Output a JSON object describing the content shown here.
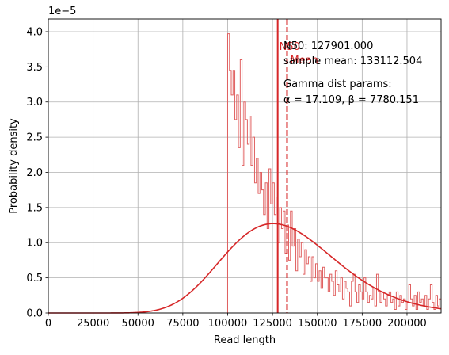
{
  "chart_data": {
    "type": "histogram",
    "title": "",
    "xlabel": "Read length",
    "ylabel": "Probability density",
    "y_offset_label": "1e−5",
    "xlim": [
      0,
      219000
    ],
    "ylim": [
      0,
      4.18e-05
    ],
    "grid": true,
    "x_ticks": [
      {
        "value": 0,
        "label": "0"
      },
      {
        "value": 25000,
        "label": "25000"
      },
      {
        "value": 50000,
        "label": "50000"
      },
      {
        "value": 75000,
        "label": "75000"
      },
      {
        "value": 100000,
        "label": "100000"
      },
      {
        "value": 125000,
        "label": "125000"
      },
      {
        "value": 150000,
        "label": "150000"
      },
      {
        "value": 175000,
        "label": "175000"
      },
      {
        "value": 200000,
        "label": "200000"
      }
    ],
    "y_ticks": [
      {
        "value": 0.0,
        "label": "0.0"
      },
      {
        "value": 5e-06,
        "label": "0.5"
      },
      {
        "value": 1e-05,
        "label": "1.0"
      },
      {
        "value": 1.5e-05,
        "label": "1.5"
      },
      {
        "value": 2e-05,
        "label": "2.0"
      },
      {
        "value": 2.5e-05,
        "label": "2.5"
      },
      {
        "value": 3e-05,
        "label": "3.0"
      },
      {
        "value": 3.5e-05,
        "label": "3.5"
      },
      {
        "value": 4e-05,
        "label": "4.0"
      }
    ],
    "histogram": {
      "bin_start": 100000,
      "bin_width": 1000,
      "densities": [
        3.97e-05,
        3.45e-05,
        3.1e-05,
        3.45e-05,
        2.75e-05,
        3.1e-05,
        2.35e-05,
        3.6e-05,
        2.1e-05,
        3e-05,
        2.75e-05,
        2.4e-05,
        2.8e-05,
        2.1e-05,
        2.5e-05,
        1.85e-05,
        2.2e-05,
        1.7e-05,
        2e-05,
        1.75e-05,
        1.4e-05,
        1.85e-05,
        1.2e-05,
        2.05e-05,
        1.55e-05,
        1.85e-05,
        1.4e-05,
        1.65e-05,
        1e-05,
        1.5e-05,
        1.2e-05,
        1.45e-05,
        8.5e-06,
        1.25e-05,
        7.5e-06,
        1.45e-05,
        9.5e-06,
        1.2e-05,
        6e-06,
        1.05e-05,
        8e-06,
        1e-05,
        5.5e-06,
        9e-06,
        7e-06,
        8e-06,
        4.5e-06,
        8e-06,
        5e-06,
        7e-06,
        4.5e-06,
        6e-06,
        3.5e-06,
        6.5e-06,
        5e-06,
        5e-06,
        3e-06,
        5.5e-06,
        4.5e-06,
        2.5e-06,
        6e-06,
        4e-06,
        3e-06,
        5e-06,
        2e-06,
        4.5e-06,
        3.5e-06,
        3e-06,
        1e-06,
        4.5e-06,
        5.5e-06,
        3e-06,
        1.5e-06,
        4e-06,
        3e-06,
        2e-06,
        5e-06,
        3e-06,
        1.5e-06,
        2.5e-06,
        2e-06,
        3.5e-06,
        1e-06,
        5.5e-06,
        3e-06,
        1.5e-06,
        3e-06,
        2e-06,
        1e-06,
        2.5e-06,
        3e-06,
        1.5e-06,
        2e-06,
        5e-07,
        3e-06,
        1e-06,
        2.5e-06,
        1.5e-06,
        2e-06,
        5e-07,
        1.5e-06,
        4e-06,
        2e-06,
        1e-06,
        2.5e-06,
        5e-07,
        3e-06,
        1.5e-06,
        2e-06,
        1e-06,
        2.5e-06,
        5e-07,
        2e-06,
        4e-06,
        1.5e-06,
        5e-07,
        2.5e-06,
        1e-06,
        2e-06
      ],
      "color": "#e06060"
    },
    "gamma_fit": {
      "alpha": 17.109,
      "beta": 7780.151,
      "color": "#d62728"
    },
    "vlines": [
      {
        "name": "N50",
        "value": 127901.0,
        "style": "solid",
        "color": "#d62728"
      },
      {
        "name": "Mean",
        "value": 133112.504,
        "style": "dashed",
        "color": "#d62728"
      }
    ],
    "annotations": {
      "n50": "N50: 127901.000",
      "sample_mean": "sample mean: 133112.504",
      "gamma_title": "Gamma dist params:",
      "gamma_params": "α = 17.109,  β = 7780.151"
    }
  }
}
